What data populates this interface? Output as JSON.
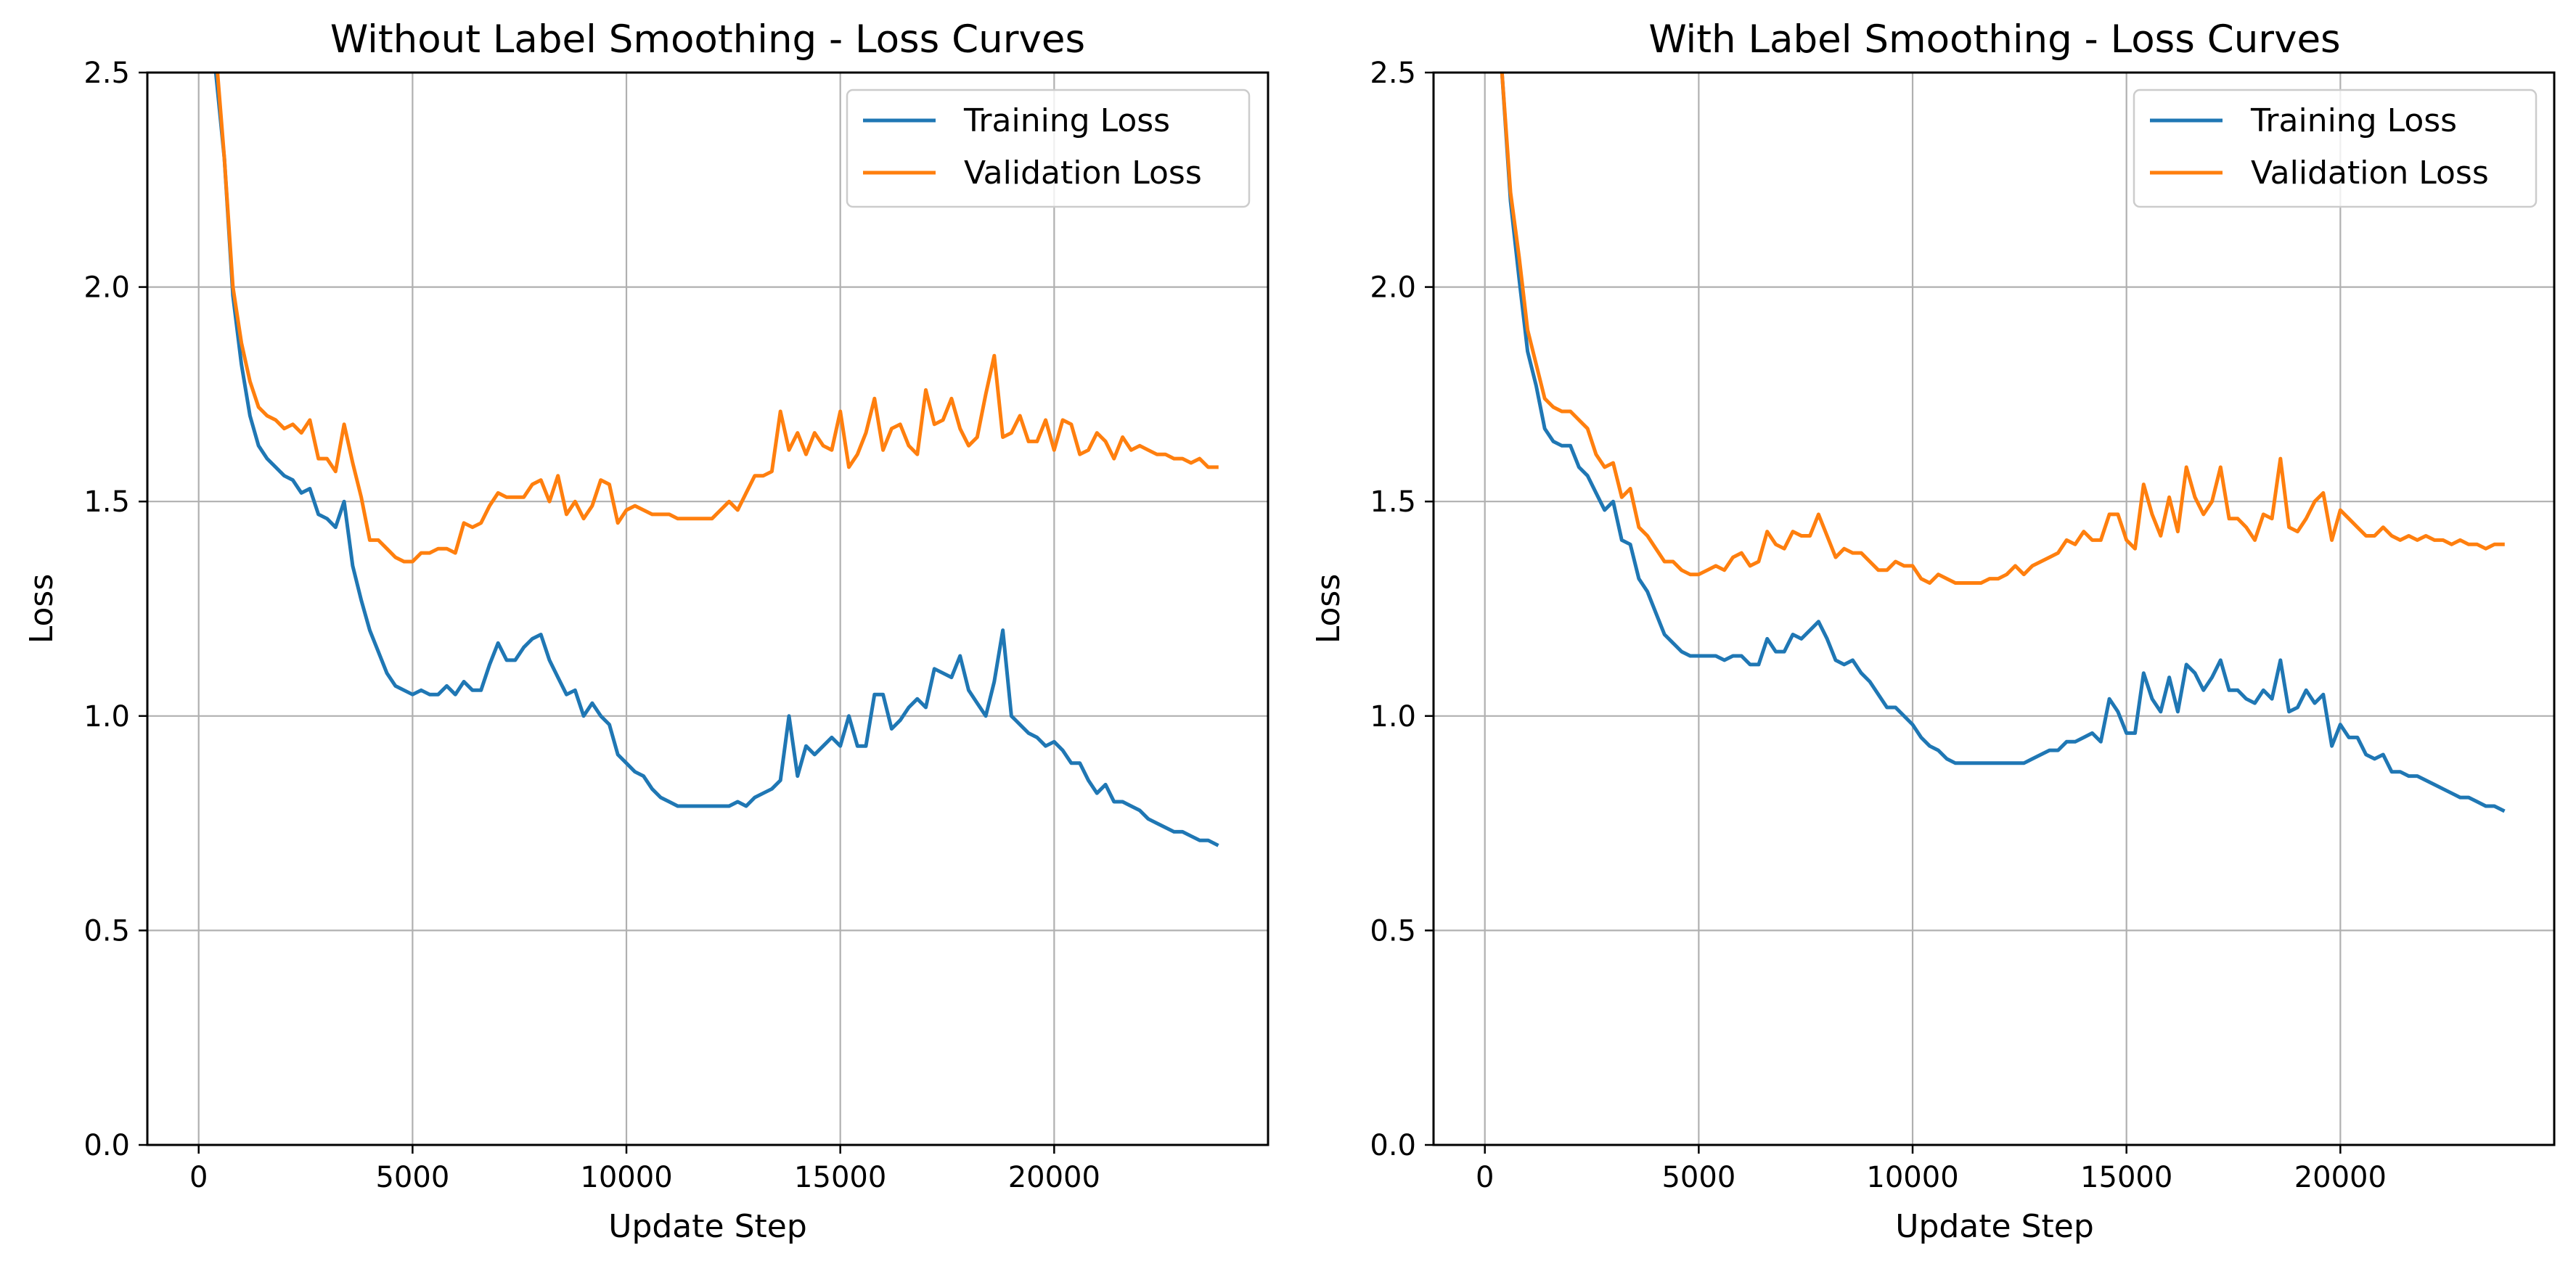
{
  "chart_data": [
    {
      "type": "line",
      "title": "Without Label Smoothing - Loss Curves",
      "xlabel": "Update Step",
      "ylabel": "Loss",
      "xlim": [
        -1200,
        25000
      ],
      "ylim": [
        0,
        2.5
      ],
      "xticks": [
        0,
        5000,
        10000,
        15000,
        20000
      ],
      "xtick_labels": [
        "0",
        "5000",
        "10000",
        "15000",
        "20000"
      ],
      "yticks": [
        0,
        0.5,
        1.0,
        1.5,
        2.0,
        2.5
      ],
      "ytick_labels": [
        "0.0",
        "0.5",
        "1.0",
        "1.5",
        "2.0",
        "2.5"
      ],
      "grid": true,
      "legend_position": "top-right",
      "series": [
        {
          "name": "Training Loss",
          "color": "#1f77b4",
          "x": [
            200,
            400,
            600,
            800,
            1000,
            1200,
            1400,
            1600,
            1800,
            2000,
            2200,
            2400,
            2600,
            2800,
            3000,
            3200,
            3400,
            3600,
            3800,
            4000,
            4200,
            4400,
            4600,
            4800,
            5000,
            5200,
            5400,
            5600,
            5800,
            6000,
            6200,
            6400,
            6600,
            6800,
            7000,
            7200,
            7400,
            7600,
            7800,
            8000,
            8200,
            8400,
            8600,
            8800,
            9000,
            9200,
            9400,
            9600,
            9800,
            10000,
            10200,
            10400,
            10600,
            10800,
            11000,
            11200,
            11400,
            11600,
            11800,
            12000,
            12200,
            12400,
            12600,
            12800,
            13000,
            13200,
            13400,
            13600,
            13800,
            14000,
            14200,
            14400,
            14600,
            14800,
            15000,
            15200,
            15400,
            15600,
            15800,
            16000,
            16200,
            16400,
            16600,
            16800,
            17000,
            17200,
            17400,
            17600,
            17800,
            18000,
            18200,
            18400,
            18600,
            18800,
            19000,
            19200,
            19400,
            19600,
            19800,
            20000,
            20200,
            20400,
            20600,
            20800,
            21000,
            21200,
            21400,
            21600,
            21800,
            22000,
            22200,
            22400,
            22600,
            22800,
            23000,
            23200,
            23400,
            23600,
            23800
          ],
          "y": [
            2.75,
            2.5,
            2.3,
            1.98,
            1.82,
            1.7,
            1.63,
            1.6,
            1.58,
            1.56,
            1.55,
            1.52,
            1.53,
            1.47,
            1.46,
            1.44,
            1.5,
            1.35,
            1.27,
            1.2,
            1.15,
            1.1,
            1.07,
            1.06,
            1.05,
            1.06,
            1.05,
            1.05,
            1.07,
            1.05,
            1.08,
            1.06,
            1.06,
            1.12,
            1.17,
            1.13,
            1.13,
            1.16,
            1.18,
            1.19,
            1.13,
            1.09,
            1.05,
            1.06,
            1.0,
            1.03,
            1.0,
            0.98,
            0.91,
            0.89,
            0.87,
            0.86,
            0.83,
            0.81,
            0.8,
            0.79,
            0.79,
            0.79,
            0.79,
            0.79,
            0.79,
            0.79,
            0.8,
            0.79,
            0.81,
            0.82,
            0.83,
            0.85,
            1.0,
            0.86,
            0.93,
            0.91,
            0.93,
            0.95,
            0.93,
            1.0,
            0.93,
            0.93,
            1.05,
            1.05,
            0.97,
            0.99,
            1.02,
            1.04,
            1.02,
            1.11,
            1.1,
            1.09,
            1.14,
            1.06,
            1.03,
            1.0,
            1.08,
            1.2,
            1.0,
            0.98,
            0.96,
            0.95,
            0.93,
            0.94,
            0.92,
            0.89,
            0.89,
            0.85,
            0.82,
            0.84,
            0.8,
            0.8,
            0.79,
            0.78,
            0.76,
            0.75,
            0.74,
            0.73,
            0.73,
            0.72,
            0.71,
            0.71,
            0.7
          ]
        },
        {
          "name": "Validation Loss",
          "color": "#ff7f0e",
          "x": [
            200,
            400,
            600,
            800,
            1000,
            1200,
            1400,
            1600,
            1800,
            2000,
            2200,
            2400,
            2600,
            2800,
            3000,
            3200,
            3400,
            3600,
            3800,
            4000,
            4200,
            4400,
            4600,
            4800,
            5000,
            5200,
            5400,
            5600,
            5800,
            6000,
            6200,
            6400,
            6600,
            6800,
            7000,
            7200,
            7400,
            7600,
            7800,
            8000,
            8200,
            8400,
            8600,
            8800,
            9000,
            9200,
            9400,
            9600,
            9800,
            10000,
            10200,
            10400,
            10600,
            10800,
            11000,
            11200,
            11400,
            11600,
            11800,
            12000,
            12200,
            12400,
            12600,
            12800,
            13000,
            13200,
            13400,
            13600,
            13800,
            14000,
            14200,
            14400,
            14600,
            14800,
            15000,
            15200,
            15400,
            15600,
            15800,
            16000,
            16200,
            16400,
            16600,
            16800,
            17000,
            17200,
            17400,
            17600,
            17800,
            18000,
            18200,
            18400,
            18600,
            18800,
            19000,
            19200,
            19400,
            19600,
            19800,
            20000,
            20200,
            20400,
            20600,
            20800,
            21000,
            21200,
            21400,
            21600,
            21800,
            22000,
            22200,
            22400,
            22600,
            22800,
            23000,
            23200,
            23400,
            23600,
            23800
          ],
          "y": [
            2.8,
            2.55,
            2.3,
            2.0,
            1.87,
            1.78,
            1.72,
            1.7,
            1.69,
            1.67,
            1.68,
            1.66,
            1.69,
            1.6,
            1.6,
            1.57,
            1.68,
            1.59,
            1.51,
            1.41,
            1.41,
            1.39,
            1.37,
            1.36,
            1.36,
            1.38,
            1.38,
            1.39,
            1.39,
            1.38,
            1.45,
            1.44,
            1.45,
            1.49,
            1.52,
            1.51,
            1.51,
            1.51,
            1.54,
            1.55,
            1.5,
            1.56,
            1.47,
            1.5,
            1.46,
            1.49,
            1.55,
            1.54,
            1.45,
            1.48,
            1.49,
            1.48,
            1.47,
            1.47,
            1.47,
            1.46,
            1.46,
            1.46,
            1.46,
            1.46,
            1.48,
            1.5,
            1.48,
            1.52,
            1.56,
            1.56,
            1.57,
            1.71,
            1.62,
            1.66,
            1.61,
            1.66,
            1.63,
            1.62,
            1.71,
            1.58,
            1.61,
            1.66,
            1.74,
            1.62,
            1.67,
            1.68,
            1.63,
            1.61,
            1.76,
            1.68,
            1.69,
            1.74,
            1.67,
            1.63,
            1.65,
            1.75,
            1.84,
            1.65,
            1.66,
            1.7,
            1.64,
            1.64,
            1.69,
            1.62,
            1.69,
            1.68,
            1.61,
            1.62,
            1.66,
            1.64,
            1.6,
            1.65,
            1.62,
            1.63,
            1.62,
            1.61,
            1.61,
            1.6,
            1.6,
            1.59,
            1.6,
            1.58,
            1.58
          ]
        }
      ]
    },
    {
      "type": "line",
      "title": "With Label Smoothing - Loss Curves",
      "xlabel": "Update Step",
      "ylabel": "Loss",
      "xlim": [
        -1200,
        25000
      ],
      "ylim": [
        0,
        2.5
      ],
      "xticks": [
        0,
        5000,
        10000,
        15000,
        20000
      ],
      "xtick_labels": [
        "0",
        "5000",
        "10000",
        "15000",
        "20000"
      ],
      "yticks": [
        0,
        0.5,
        1.0,
        1.5,
        2.0,
        2.5
      ],
      "ytick_labels": [
        "0.0",
        "0.5",
        "1.0",
        "1.5",
        "2.0",
        "2.5"
      ],
      "grid": true,
      "legend_position": "top-right",
      "series": [
        {
          "name": "Training Loss",
          "color": "#1f77b4",
          "x": [
            200,
            400,
            600,
            800,
            1000,
            1200,
            1400,
            1600,
            1800,
            2000,
            2200,
            2400,
            2600,
            2800,
            3000,
            3200,
            3400,
            3600,
            3800,
            4000,
            4200,
            4400,
            4600,
            4800,
            5000,
            5200,
            5400,
            5600,
            5800,
            6000,
            6200,
            6400,
            6600,
            6800,
            7000,
            7200,
            7400,
            7600,
            7800,
            8000,
            8200,
            8400,
            8600,
            8800,
            9000,
            9200,
            9400,
            9600,
            9800,
            10000,
            10200,
            10400,
            10600,
            10800,
            11000,
            11200,
            11400,
            11600,
            11800,
            12000,
            12200,
            12400,
            12600,
            12800,
            13000,
            13200,
            13400,
            13600,
            13800,
            14000,
            14200,
            14400,
            14600,
            14800,
            15000,
            15200,
            15400,
            15600,
            15800,
            16000,
            16200,
            16400,
            16600,
            16800,
            17000,
            17200,
            17400,
            17600,
            17800,
            18000,
            18200,
            18400,
            18600,
            18800,
            19000,
            19200,
            19400,
            19600,
            19800,
            20000,
            20200,
            20400,
            20600,
            20800,
            21000,
            21200,
            21400,
            21600,
            21800,
            22000,
            22200,
            22400,
            22600,
            22800,
            23000,
            23200,
            23400,
            23600,
            23800
          ],
          "y": [
            2.75,
            2.5,
            2.2,
            2.02,
            1.85,
            1.77,
            1.67,
            1.64,
            1.63,
            1.63,
            1.58,
            1.56,
            1.52,
            1.48,
            1.5,
            1.41,
            1.4,
            1.32,
            1.29,
            1.24,
            1.19,
            1.17,
            1.15,
            1.14,
            1.14,
            1.14,
            1.14,
            1.13,
            1.14,
            1.14,
            1.12,
            1.12,
            1.18,
            1.15,
            1.15,
            1.19,
            1.18,
            1.2,
            1.22,
            1.18,
            1.13,
            1.12,
            1.13,
            1.1,
            1.08,
            1.05,
            1.02,
            1.02,
            1.0,
            0.98,
            0.95,
            0.93,
            0.92,
            0.9,
            0.89,
            0.89,
            0.89,
            0.89,
            0.89,
            0.89,
            0.89,
            0.89,
            0.89,
            0.9,
            0.91,
            0.92,
            0.92,
            0.94,
            0.94,
            0.95,
            0.96,
            0.94,
            1.04,
            1.01,
            0.96,
            0.96,
            1.1,
            1.04,
            1.01,
            1.09,
            1.01,
            1.12,
            1.1,
            1.06,
            1.09,
            1.13,
            1.06,
            1.06,
            1.04,
            1.03,
            1.06,
            1.04,
            1.13,
            1.01,
            1.02,
            1.06,
            1.03,
            1.05,
            0.93,
            0.98,
            0.95,
            0.95,
            0.91,
            0.9,
            0.91,
            0.87,
            0.87,
            0.86,
            0.86,
            0.85,
            0.84,
            0.83,
            0.82,
            0.81,
            0.81,
            0.8,
            0.79,
            0.79,
            0.78
          ]
        },
        {
          "name": "Validation Loss",
          "color": "#ff7f0e",
          "x": [
            200,
            400,
            600,
            800,
            1000,
            1200,
            1400,
            1600,
            1800,
            2000,
            2200,
            2400,
            2600,
            2800,
            3000,
            3200,
            3400,
            3600,
            3800,
            4000,
            4200,
            4400,
            4600,
            4800,
            5000,
            5200,
            5400,
            5600,
            5800,
            6000,
            6200,
            6400,
            6600,
            6800,
            7000,
            7200,
            7400,
            7600,
            7800,
            8000,
            8200,
            8400,
            8600,
            8800,
            9000,
            9200,
            9400,
            9600,
            9800,
            10000,
            10200,
            10400,
            10600,
            10800,
            11000,
            11200,
            11400,
            11600,
            11800,
            12000,
            12200,
            12400,
            12600,
            12800,
            13000,
            13200,
            13400,
            13600,
            13800,
            14000,
            14200,
            14400,
            14600,
            14800,
            15000,
            15200,
            15400,
            15600,
            15800,
            16000,
            16200,
            16400,
            16600,
            16800,
            17000,
            17200,
            17400,
            17600,
            17800,
            18000,
            18200,
            18400,
            18600,
            18800,
            19000,
            19200,
            19400,
            19600,
            19800,
            20000,
            20200,
            20400,
            20600,
            20800,
            21000,
            21200,
            21400,
            21600,
            21800,
            22000,
            22200,
            22400,
            22600,
            22800,
            23000,
            23200,
            23400,
            23600,
            23800
          ],
          "y": [
            2.8,
            2.5,
            2.22,
            2.07,
            1.9,
            1.82,
            1.74,
            1.72,
            1.71,
            1.71,
            1.69,
            1.67,
            1.61,
            1.58,
            1.59,
            1.51,
            1.53,
            1.44,
            1.42,
            1.39,
            1.36,
            1.36,
            1.34,
            1.33,
            1.33,
            1.34,
            1.35,
            1.34,
            1.37,
            1.38,
            1.35,
            1.36,
            1.43,
            1.4,
            1.39,
            1.43,
            1.42,
            1.42,
            1.47,
            1.42,
            1.37,
            1.39,
            1.38,
            1.38,
            1.36,
            1.34,
            1.34,
            1.36,
            1.35,
            1.35,
            1.32,
            1.31,
            1.33,
            1.32,
            1.31,
            1.31,
            1.31,
            1.31,
            1.32,
            1.32,
            1.33,
            1.35,
            1.33,
            1.35,
            1.36,
            1.37,
            1.38,
            1.41,
            1.4,
            1.43,
            1.41,
            1.41,
            1.47,
            1.47,
            1.41,
            1.39,
            1.54,
            1.47,
            1.42,
            1.51,
            1.43,
            1.58,
            1.51,
            1.47,
            1.5,
            1.58,
            1.46,
            1.46,
            1.44,
            1.41,
            1.47,
            1.46,
            1.6,
            1.44,
            1.43,
            1.46,
            1.5,
            1.52,
            1.41,
            1.48,
            1.46,
            1.44,
            1.42,
            1.42,
            1.44,
            1.42,
            1.41,
            1.42,
            1.41,
            1.42,
            1.41,
            1.41,
            1.4,
            1.41,
            1.4,
            1.4,
            1.39,
            1.4,
            1.4
          ]
        }
      ]
    }
  ]
}
